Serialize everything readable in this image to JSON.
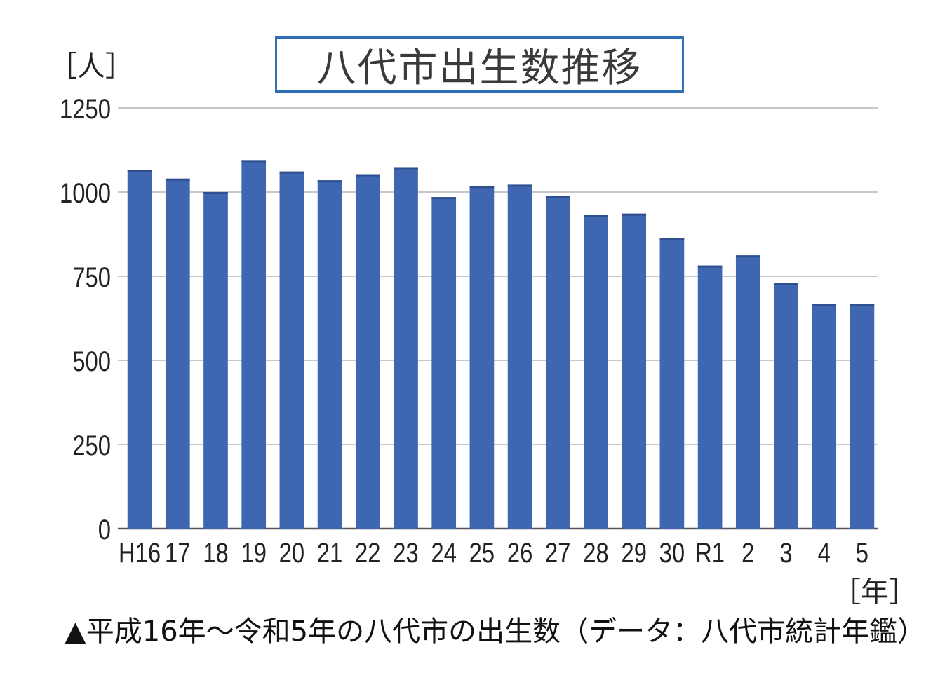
{
  "chart_data": {
    "type": "bar",
    "title": "八代市出生数推移",
    "ylabel": "［人］",
    "xlabel": "［年］",
    "categories": [
      "H16",
      "17",
      "18",
      "19",
      "20",
      "21",
      "22",
      "23",
      "24",
      "25",
      "26",
      "27",
      "28",
      "29",
      "30",
      "R1",
      "2",
      "3",
      "4",
      "5"
    ],
    "series": [
      {
        "values": [
          1066,
          1040,
          1000,
          1095,
          1061,
          1035,
          1053,
          1074,
          985,
          1018,
          1022,
          988,
          932,
          936,
          864,
          782,
          812,
          731,
          667,
          667
        ]
      }
    ],
    "ylim": [
      0,
      1250
    ],
    "yticks": [
      0,
      250,
      500,
      750,
      1000,
      1250
    ],
    "grid": true,
    "bar_color": "#3f67b1",
    "grid_color": "#c8c8c8",
    "title_border_color": "#2e6fb6"
  },
  "caption": "▲平成16年～令和5年の八代市の出生数（データ：八代市統計年鑑）"
}
